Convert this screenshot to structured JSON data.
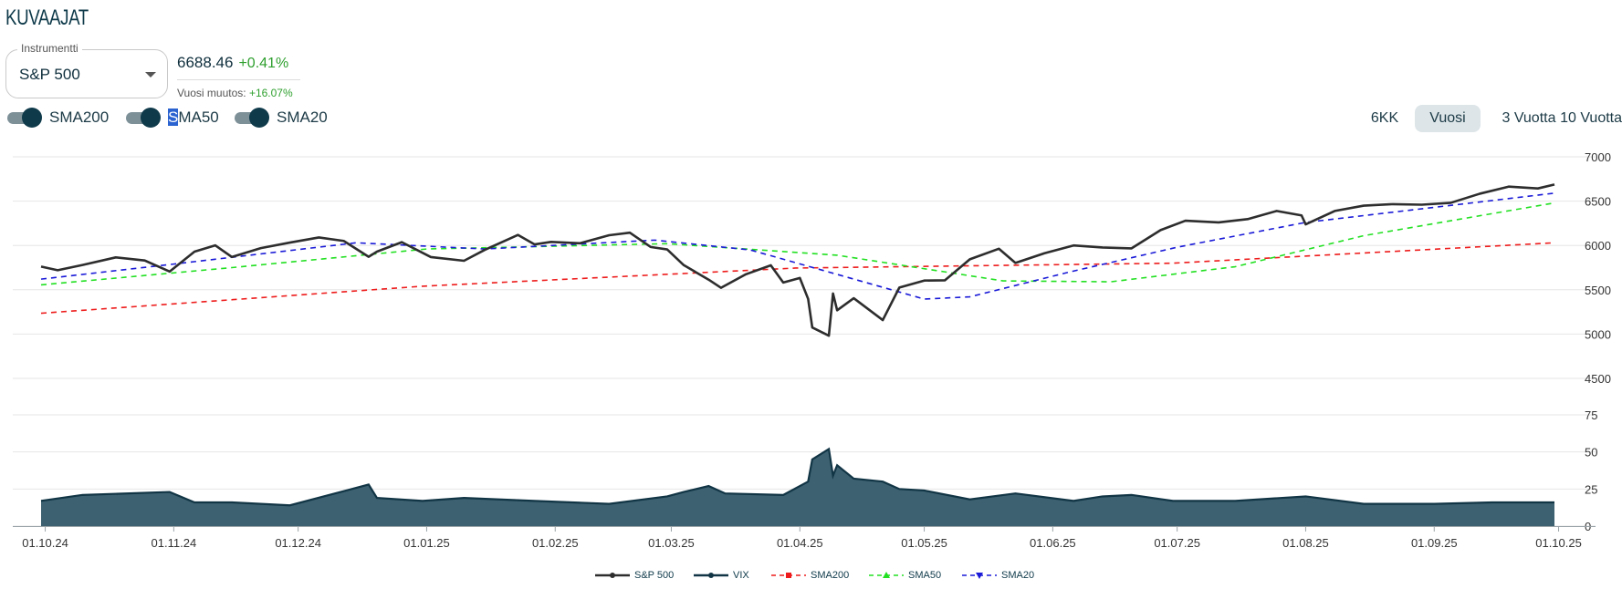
{
  "heading": "KUVAAJAT",
  "instrument": {
    "legend": "Instrumentti",
    "selected": "S&P 500"
  },
  "quote": {
    "price": "6688.46",
    "change": "+0.41%",
    "year_change_label": "Vuosi muutos:",
    "year_change_value": "+16.07%"
  },
  "toggles": [
    {
      "label": "SMA200",
      "on": true
    },
    {
      "label": "SMA50",
      "on": true
    },
    {
      "label": "SMA20",
      "on": true
    }
  ],
  "ranges": [
    {
      "label": "6KK",
      "active": false
    },
    {
      "label": "Vuosi",
      "active": true
    },
    {
      "label": "3 Vuotta",
      "active": false
    },
    {
      "label": "10 Vuotta",
      "active": false
    }
  ],
  "colors": {
    "sp500": "#2d2d2d",
    "vix_fill": "#3d6170",
    "vix_line": "#123545",
    "sma200": "#ee1c1c",
    "sma50": "#22e022",
    "sma20": "#1a1ad8",
    "grid": "#e6e6e6",
    "active_range_bg": "#dde5e8",
    "positive": "#2e9f2e"
  },
  "chart_data": {
    "type": "line",
    "x_tick_labels": [
      "01.10.24",
      "01.11.24",
      "01.12.24",
      "01.01.25",
      "01.02.25",
      "01.03.25",
      "01.04.25",
      "01.05.25",
      "01.06.25",
      "01.07.25",
      "01.08.25",
      "01.09.25",
      "01.10.25"
    ],
    "price_axis": {
      "ticks": [
        7000,
        6500,
        6000,
        5500,
        5000,
        4500
      ],
      "ylim": [
        4500,
        7000
      ]
    },
    "vix_axis": {
      "ticks": [
        75,
        50,
        25,
        0
      ],
      "ylim": [
        0,
        75
      ]
    },
    "grid": true,
    "legend_position": "bottom-center",
    "series": [
      {
        "name": "S&P 500",
        "axis": "price",
        "x": [
          "2024-09-30",
          "2024-10-04",
          "2024-10-10",
          "2024-10-18",
          "2024-10-25",
          "2024-10-31",
          "2024-11-06",
          "2024-11-11",
          "2024-11-15",
          "2024-11-22",
          "2024-11-29",
          "2024-12-06",
          "2024-12-12",
          "2024-12-18",
          "2024-12-20",
          "2024-12-26",
          "2025-01-02",
          "2025-01-10",
          "2025-01-15",
          "2025-01-23",
          "2025-01-27",
          "2025-01-31",
          "2025-02-07",
          "2025-02-14",
          "2025-02-19",
          "2025-02-24",
          "2025-02-28",
          "2025-03-04",
          "2025-03-10",
          "2025-03-13",
          "2025-03-19",
          "2025-03-25",
          "2025-03-28",
          "2025-04-01",
          "2025-04-03",
          "2025-04-04",
          "2025-04-08",
          "2025-04-09",
          "2025-04-10",
          "2025-04-14",
          "2025-04-21",
          "2025-04-25",
          "2025-05-01",
          "2025-05-06",
          "2025-05-12",
          "2025-05-19",
          "2025-05-23",
          "2025-05-30",
          "2025-06-06",
          "2025-06-13",
          "2025-06-20",
          "2025-06-27",
          "2025-07-03",
          "2025-07-11",
          "2025-07-18",
          "2025-07-25",
          "2025-07-31",
          "2025-08-01",
          "2025-08-08",
          "2025-08-15",
          "2025-08-22",
          "2025-08-29",
          "2025-09-05",
          "2025-09-12",
          "2025-09-19",
          "2025-09-26",
          "2025-09-30"
        ],
        "y": [
          5762,
          5720,
          5780,
          5865,
          5830,
          5705,
          5930,
          6001,
          5870,
          5970,
          6032,
          6090,
          6051,
          5872,
          5930,
          6037,
          5869,
          5827,
          5950,
          6119,
          6012,
          6040,
          6025,
          6115,
          6144,
          5983,
          5955,
          5778,
          5614,
          5522,
          5675,
          5776,
          5581,
          5633,
          5397,
          5074,
          4982,
          5457,
          5268,
          5405,
          5158,
          5525,
          5604,
          5607,
          5844,
          5963,
          5803,
          5912,
          6000,
          5977,
          5967,
          6173,
          6279,
          6260,
          6297,
          6389,
          6339,
          6238,
          6389,
          6449,
          6466,
          6460,
          6481,
          6584,
          6664,
          6643,
          6688
        ]
      },
      {
        "name": "VIX",
        "axis": "vix",
        "x": [
          "2024-09-30",
          "2024-10-10",
          "2024-10-31",
          "2024-11-06",
          "2024-11-15",
          "2024-11-29",
          "2024-12-18",
          "2024-12-20",
          "2024-12-31",
          "2025-01-10",
          "2025-01-27",
          "2025-02-14",
          "2025-02-28",
          "2025-03-04",
          "2025-03-10",
          "2025-03-14",
          "2025-03-28",
          "2025-04-03",
          "2025-04-04",
          "2025-04-08",
          "2025-04-09",
          "2025-04-10",
          "2025-04-14",
          "2025-04-21",
          "2025-04-25",
          "2025-05-01",
          "2025-05-12",
          "2025-05-23",
          "2025-06-06",
          "2025-06-13",
          "2025-06-20",
          "2025-06-30",
          "2025-07-15",
          "2025-08-01",
          "2025-08-15",
          "2025-09-01",
          "2025-09-15",
          "2025-09-30"
        ],
        "y": [
          17,
          21,
          23,
          16,
          16,
          14,
          28,
          19,
          17,
          19,
          17,
          15,
          20,
          23,
          27,
          22,
          21,
          30,
          45,
          52,
          34,
          41,
          32,
          30,
          25,
          24,
          18,
          22,
          17,
          20,
          21,
          17,
          17,
          20,
          15,
          15,
          16,
          16
        ]
      },
      {
        "name": "SMA200",
        "axis": "price",
        "x": [
          "2024-09-30",
          "2024-12-31",
          "2025-03-31",
          "2025-06-30",
          "2025-09-30"
        ],
        "y": [
          5235,
          5540,
          5745,
          5800,
          6030
        ]
      },
      {
        "name": "SMA50",
        "axis": "price",
        "x": [
          "2024-09-30",
          "2024-11-15",
          "2025-01-01",
          "2025-02-28",
          "2025-04-10",
          "2025-05-20",
          "2025-06-15",
          "2025-07-15",
          "2025-08-15",
          "2025-09-30"
        ],
        "y": [
          5555,
          5750,
          5960,
          6020,
          5890,
          5600,
          5590,
          5760,
          6110,
          6480
        ]
      },
      {
        "name": "SMA20",
        "axis": "price",
        "x": [
          "2024-09-30",
          "2024-11-01",
          "2024-12-15",
          "2025-01-15",
          "2025-02-25",
          "2025-03-20",
          "2025-04-08",
          "2025-05-01",
          "2025-05-12",
          "2025-06-05",
          "2025-07-01",
          "2025-08-01",
          "2025-09-01",
          "2025-09-30"
        ],
        "y": [
          5620,
          5790,
          6030,
          5960,
          6060,
          5950,
          5700,
          5395,
          5420,
          5700,
          5980,
          6260,
          6430,
          6590
        ]
      }
    ]
  },
  "legend": [
    {
      "name": "S&P 500",
      "marker": "circle"
    },
    {
      "name": "VIX",
      "marker": "circle"
    },
    {
      "name": "SMA200",
      "marker": "square"
    },
    {
      "name": "SMA50",
      "marker": "triangle"
    },
    {
      "name": "SMA20",
      "marker": "triangle-down"
    }
  ]
}
